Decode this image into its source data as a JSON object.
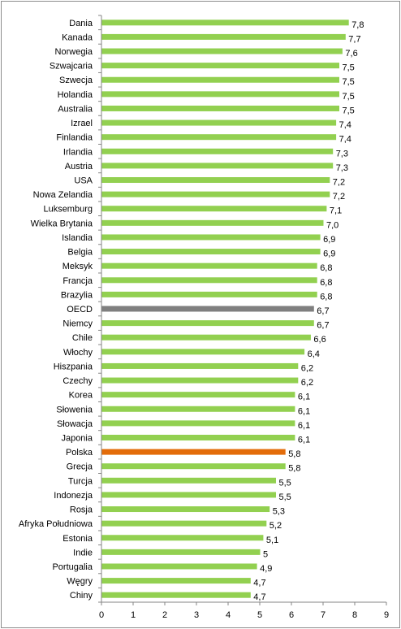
{
  "chart_data": {
    "type": "bar",
    "orientation": "horizontal",
    "categories": [
      "Dania",
      "Kanada",
      "Norwegia",
      "Szwajcaria",
      "Szwecja",
      "Holandia",
      "Australia",
      "Izrael",
      "Finlandia",
      "Irlandia",
      "Austria",
      "USA",
      "Nowa Zelandia",
      "Luksemburg",
      "Wielka Brytania",
      "Islandia",
      "Belgia",
      "Meksyk",
      "Francja",
      "Brazylia",
      "OECD",
      "Niemcy",
      "Chile",
      "Włochy",
      "Hiszpania",
      "Czechy",
      "Korea",
      "Słowenia",
      "Słowacja",
      "Japonia",
      "Polska",
      "Grecja",
      "Turcja",
      "Indonezja",
      "Rosja",
      "Afryka Południowa",
      "Estonia",
      "Indie",
      "Portugalia",
      "Węgry",
      "Chiny"
    ],
    "values": [
      7.8,
      7.7,
      7.6,
      7.5,
      7.5,
      7.5,
      7.5,
      7.4,
      7.4,
      7.3,
      7.3,
      7.2,
      7.2,
      7.1,
      7.0,
      6.9,
      6.9,
      6.8,
      6.8,
      6.8,
      6.7,
      6.7,
      6.6,
      6.4,
      6.2,
      6.2,
      6.1,
      6.1,
      6.1,
      6.1,
      5.8,
      5.8,
      5.5,
      5.5,
      5.3,
      5.2,
      5.1,
      5,
      4.9,
      4.7,
      4.7
    ],
    "value_labels": [
      "7,8",
      "7,7",
      "7,6",
      "7,5",
      "7,5",
      "7,5",
      "7,5",
      "7,4",
      "7,4",
      "7,3",
      "7,3",
      "7,2",
      "7,2",
      "7,1",
      "7,0",
      "6,9",
      "6,9",
      "6,8",
      "6,8",
      "6,8",
      "6,7",
      "6,7",
      "6,6",
      "6,4",
      "6,2",
      "6,2",
      "6,1",
      "6,1",
      "6,1",
      "6,1",
      "5,8",
      "5,8",
      "5,5",
      "5,5",
      "5,3",
      "5,2",
      "5,1",
      "5",
      "4,9",
      "4,7",
      "4,7"
    ],
    "highlight": {
      "OECD": "#7f7f7f",
      "Polska": "#e36c0a"
    },
    "bar_color": "#92d050",
    "x_ticks": [
      "0",
      "1",
      "2",
      "3",
      "4",
      "5",
      "6",
      "7",
      "8",
      "9"
    ],
    "xlim": [
      0,
      9
    ],
    "title": "",
    "xlabel": "",
    "ylabel": "",
    "grid": false,
    "legend": "none"
  }
}
